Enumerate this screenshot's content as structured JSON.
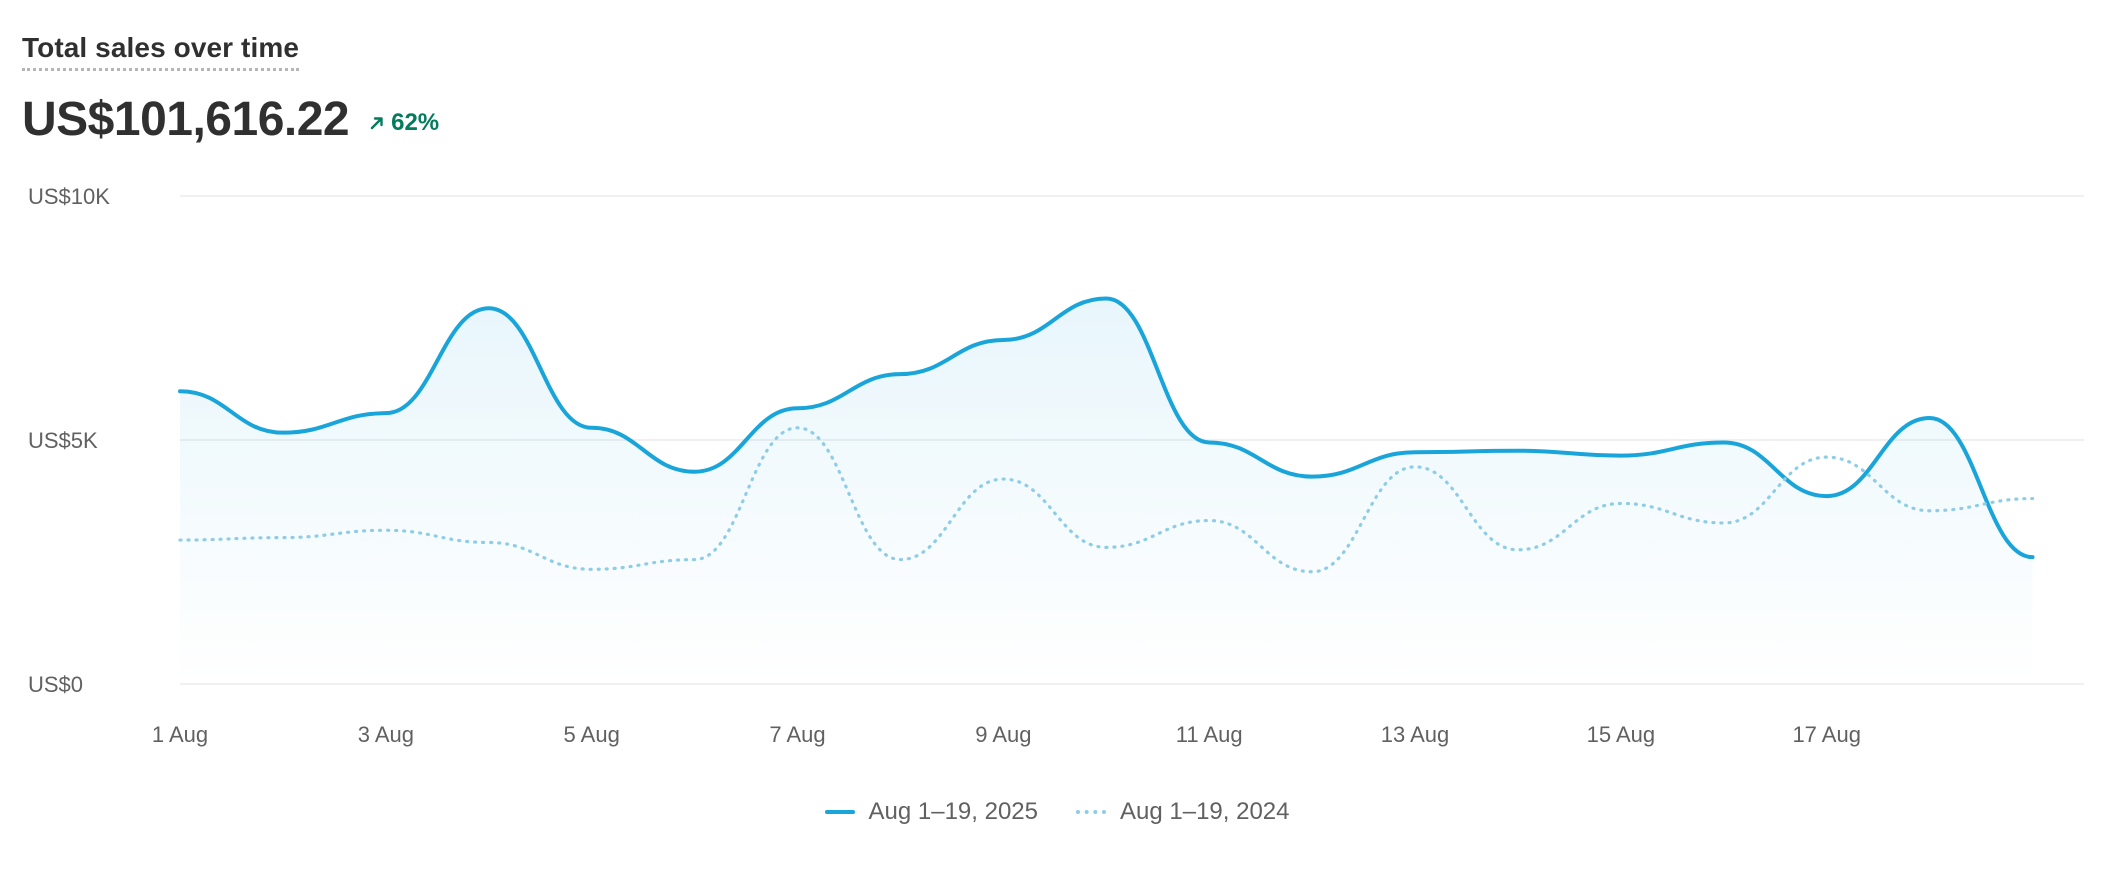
{
  "header": {
    "title": "Total sales over time",
    "total": "US$101,616.22",
    "change": "62%",
    "change_icon": "arrow-up-right-icon",
    "change_color": "#047b5d"
  },
  "colors": {
    "current": "#1aa5da",
    "previous": "#8fcde6",
    "grid": "#ebebeb",
    "tick_text": "#616161"
  },
  "chart_data": {
    "type": "area",
    "title": "Total sales over time",
    "x": [
      "1 Aug",
      "2 Aug",
      "3 Aug",
      "4 Aug",
      "5 Aug",
      "6 Aug",
      "7 Aug",
      "8 Aug",
      "9 Aug",
      "10 Aug",
      "11 Aug",
      "12 Aug",
      "13 Aug",
      "14 Aug",
      "15 Aug",
      "16 Aug",
      "17 Aug",
      "18 Aug",
      "19 Aug"
    ],
    "x_ticks": [
      "1 Aug",
      "3 Aug",
      "5 Aug",
      "7 Aug",
      "9 Aug",
      "11 Aug",
      "13 Aug",
      "15 Aug",
      "17 Aug"
    ],
    "y_ticks": [
      {
        "value": 0,
        "label": "US$0"
      },
      {
        "value": 5000,
        "label": "US$5K"
      },
      {
        "value": 10000,
        "label": "US$10K"
      }
    ],
    "ylim": [
      0,
      10000
    ],
    "grid": true,
    "legend_position": "bottom-center",
    "series": [
      {
        "name": "Aug 1–19, 2025",
        "style": "solid-area",
        "values": [
          6000,
          5150,
          5550,
          7700,
          5250,
          4350,
          5650,
          6350,
          7050,
          7900,
          4950,
          4250,
          4750,
          4780,
          4680,
          4950,
          3850,
          5450,
          2600
        ]
      },
      {
        "name": "Aug 1–19, 2024",
        "style": "dotted",
        "values": [
          2950,
          3000,
          3150,
          2900,
          2350,
          2550,
          5250,
          2550,
          4200,
          2800,
          3350,
          2300,
          4450,
          2750,
          3700,
          3300,
          4650,
          3550,
          3800
        ]
      }
    ]
  }
}
